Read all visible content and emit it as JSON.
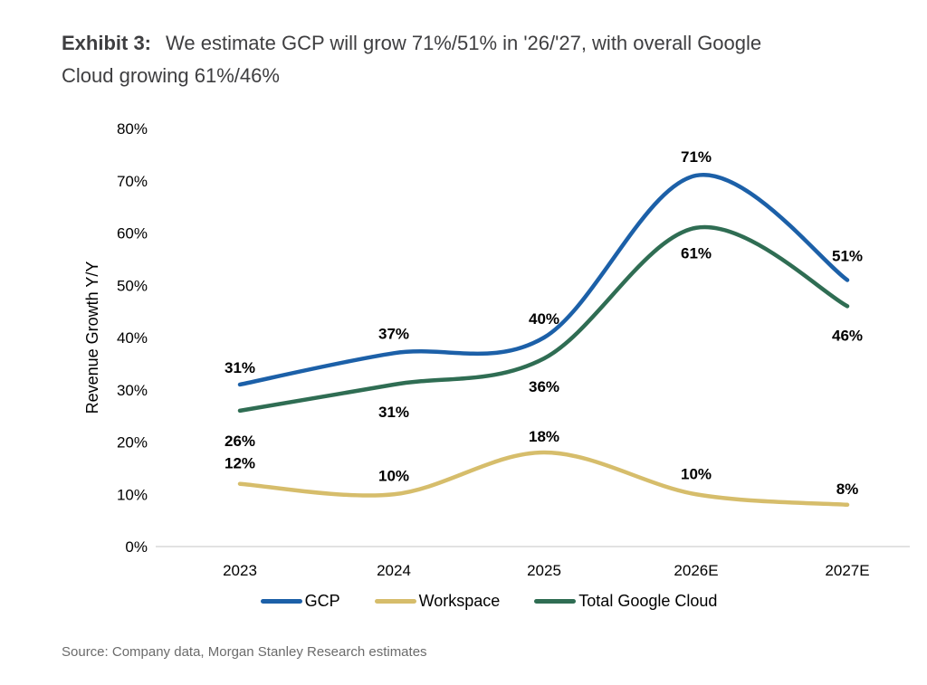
{
  "header": {
    "exhibit_label": "Exhibit 3:",
    "title_lines": [
      "We estimate GCP will grow 71%/51% in '26/'27, with overall Google",
      "Cloud growing 61%/46%"
    ]
  },
  "chart_data": {
    "type": "line",
    "categories": [
      "2023",
      "2024",
      "2025",
      "2026E",
      "2027E"
    ],
    "series": [
      {
        "name": "GCP",
        "color": "#1c60a8",
        "values": [
          31,
          37,
          40,
          71,
          51
        ]
      },
      {
        "name": "Workspace",
        "color": "#d6bd6b",
        "values": [
          12,
          10,
          18,
          10,
          8
        ]
      },
      {
        "name": "Total Google Cloud",
        "color": "#2f6d53",
        "values": [
          26,
          31,
          36,
          61,
          46
        ]
      }
    ],
    "title": "We estimate GCP will grow 71%/51% in '26/'27, with overall Google Cloud growing 61%/46%",
    "xlabel": "",
    "ylabel": "Revenue Growth Y/Y",
    "ytick_labels": [
      "0%",
      "10%",
      "20%",
      "30%",
      "40%",
      "50%",
      "60%",
      "70%",
      "80%"
    ],
    "ylim": [
      0,
      80
    ],
    "grid": false,
    "data_labels": true,
    "value_suffix": "%",
    "legend_position": "bottom"
  },
  "footer": {
    "source": "Source: Company data, Morgan Stanley Research estimates"
  },
  "colors": {
    "axis_line": "#d9d9d9",
    "tick_text": "#000000",
    "title_text": "#3e3e40",
    "source_text": "#6b6b6b"
  }
}
